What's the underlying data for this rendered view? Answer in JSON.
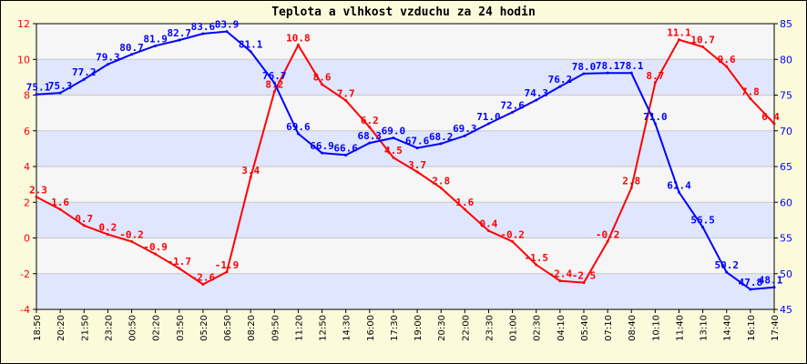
{
  "chart_data": {
    "type": "line",
    "title": "Teplota a vlhkost vzduchu za 24 hodin",
    "x": [
      "18:50",
      "20:20",
      "21:50",
      "23:20",
      "00:50",
      "02:20",
      "03:50",
      "05:20",
      "06:50",
      "08:20",
      "09:50",
      "11:20",
      "12:50",
      "14:30",
      "16:00",
      "17:30",
      "19:00",
      "20:30",
      "22:00",
      "23:30",
      "01:00",
      "02:30",
      "04:10",
      "05:40",
      "07:10",
      "08:40",
      "10:10",
      "11:40",
      "13:10",
      "14:40",
      "16:10",
      "17:40"
    ],
    "y_left": {
      "min": -4,
      "max": 12,
      "ticks": [
        -4,
        -2,
        0,
        2,
        4,
        6,
        8,
        10,
        12
      ],
      "color": "#ff0000"
    },
    "y_right": {
      "min": 45,
      "max": 85,
      "ticks": [
        45,
        50,
        55,
        60,
        65,
        70,
        75,
        80,
        85
      ],
      "color": "#0000ff"
    },
    "grid": true,
    "series": [
      {
        "axis": "left",
        "color": "#ff0000",
        "values": [
          2.3,
          1.6,
          0.7,
          0.2,
          -0.2,
          -0.9,
          -1.7,
          -2.6,
          -1.9,
          3.4,
          8.2,
          10.8,
          8.6,
          7.7,
          6.2,
          4.5,
          3.7,
          2.8,
          1.6,
          0.4,
          -0.2,
          -1.5,
          -2.4,
          -2.5,
          -0.2,
          2.8,
          8.7,
          11.1,
          10.7,
          9.6,
          7.8,
          6.4
        ]
      },
      {
        "axis": "right",
        "color": "#0000ff",
        "values": [
          75.1,
          75.3,
          77.2,
          79.3,
          80.7,
          81.9,
          82.7,
          83.6,
          83.9,
          81.1,
          76.7,
          69.6,
          66.9,
          66.6,
          68.3,
          69.0,
          67.6,
          68.2,
          69.3,
          71.0,
          72.6,
          74.3,
          76.2,
          78.0,
          78.1,
          78.1,
          71.0,
          61.4,
          56.5,
          50.2,
          47.8,
          48.1
        ]
      }
    ]
  }
}
